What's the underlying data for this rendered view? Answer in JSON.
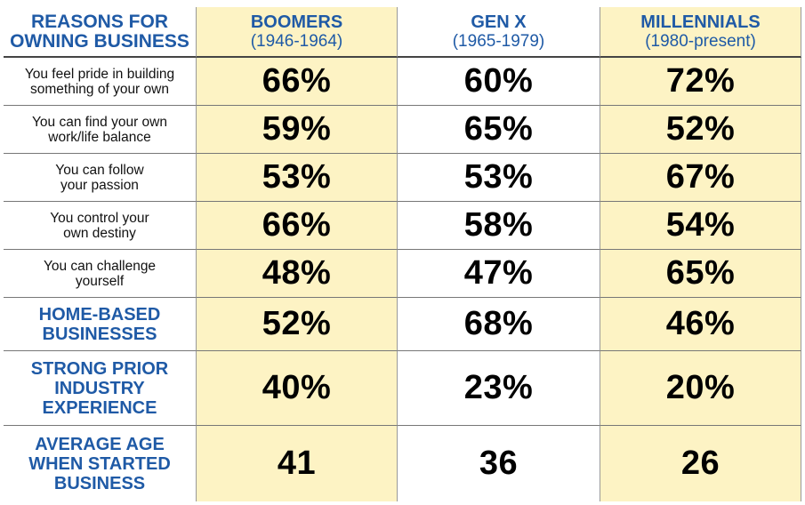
{
  "chart_data": {
    "type": "table",
    "header": {
      "reason_label": "REASONS FOR\nOWNING BUSINESS",
      "generations": [
        {
          "name": "BOOMERS",
          "years": "(1946-1964)"
        },
        {
          "name": "GEN X",
          "years": "(1965-1979)"
        },
        {
          "name": "MILLENNIALS",
          "years": "(1980-present)"
        }
      ]
    },
    "rows": [
      {
        "label": "You feel pride in building\nsomething of your own",
        "style": "small",
        "values": [
          "66%",
          "60%",
          "72%"
        ]
      },
      {
        "label": "You can find your own\nwork/life balance",
        "style": "small",
        "values": [
          "59%",
          "65%",
          "52%"
        ]
      },
      {
        "label": "You can follow\nyour passion",
        "style": "small",
        "values": [
          "53%",
          "53%",
          "67%"
        ]
      },
      {
        "label": "You control your\nown destiny",
        "style": "small",
        "values": [
          "66%",
          "58%",
          "54%"
        ]
      },
      {
        "label": "You can challenge\nyourself",
        "style": "small",
        "values": [
          "48%",
          "47%",
          "65%"
        ]
      },
      {
        "label": "HOME-BASED\nBUSINESSES",
        "style": "big",
        "values": [
          "52%",
          "68%",
          "46%"
        ]
      },
      {
        "label": "STRONG PRIOR\nINDUSTRY\nEXPERIENCE",
        "style": "big",
        "values": [
          "40%",
          "23%",
          "20%"
        ]
      },
      {
        "label": "AVERAGE AGE\nWHEN STARTED\nBUSINESS",
        "style": "big",
        "values": [
          "41",
          "36",
          "26"
        ]
      }
    ],
    "highlight_color": "#fdf3c4",
    "accent_color": "#1f5aa6"
  }
}
